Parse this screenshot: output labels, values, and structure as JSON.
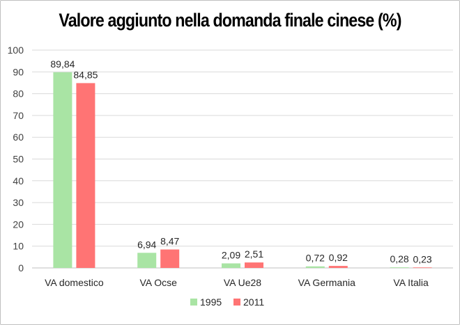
{
  "chart_data": {
    "type": "bar",
    "title": "Valore aggiunto nella domanda finale cinese (%)",
    "categories": [
      "VA domestico",
      "VA Ocse",
      "VA Ue28",
      "VA Germania",
      "VA Italia"
    ],
    "series": [
      {
        "name": "1995",
        "color": "#a9e4a4",
        "values": [
          89.84,
          6.94,
          2.09,
          0.72,
          0.28
        ],
        "labels": [
          "89,84",
          "6,94",
          "2,09",
          "0,72",
          "0,28"
        ]
      },
      {
        "name": "2011",
        "color": "#ff7474",
        "values": [
          84.85,
          8.47,
          2.51,
          0.92,
          0.23
        ],
        "labels": [
          "84,85",
          "8,47",
          "2,51",
          "0,92",
          "0,23"
        ]
      }
    ],
    "ylim": [
      0,
      100
    ],
    "yticks": [
      0,
      10,
      20,
      30,
      40,
      50,
      60,
      70,
      80,
      90,
      100
    ],
    "grid": true,
    "gridline_color": "#d9d9d9",
    "legend_position": "bottom"
  }
}
